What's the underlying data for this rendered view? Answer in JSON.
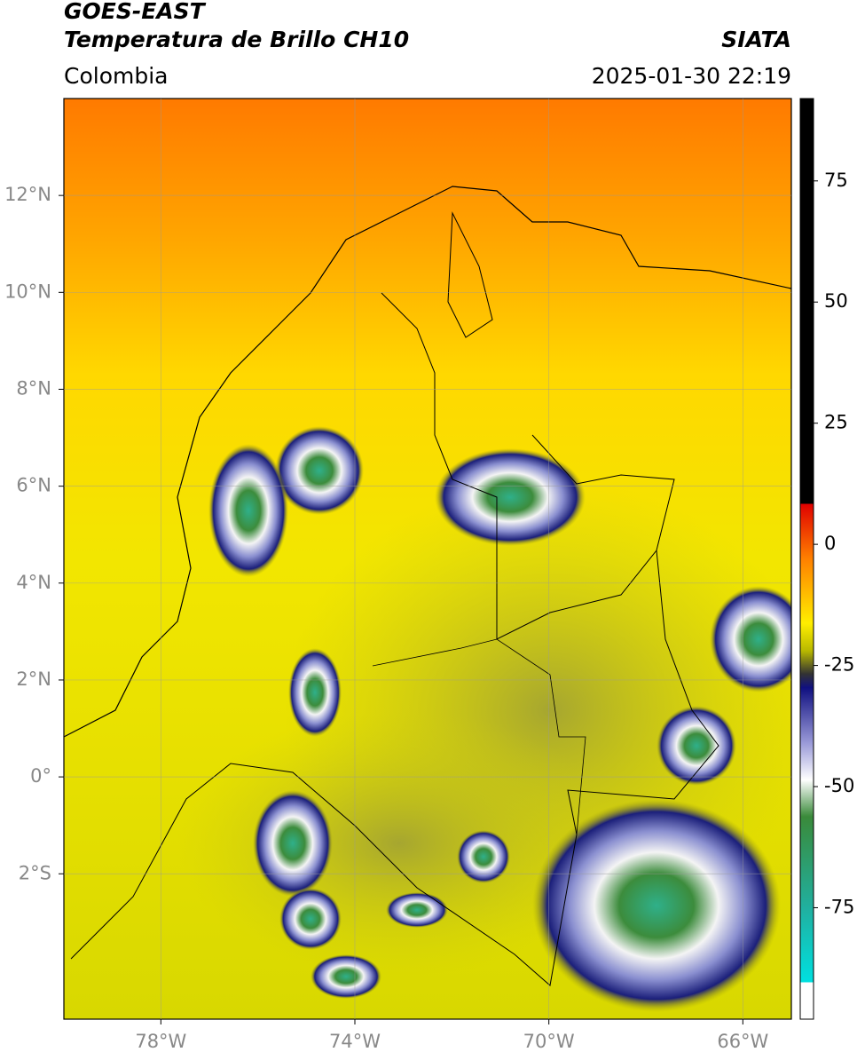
{
  "header": {
    "title": "GOES-EAST",
    "subtitle": "Temperatura de Brillo CH10",
    "source": "SIATA",
    "region": "Colombia",
    "datetime": "2025-01-30 22:19"
  },
  "map": {
    "xlim": [
      -80,
      -65
    ],
    "ylim": [
      -5,
      14
    ],
    "xticks": [
      {
        "value": -78,
        "label": "78°W"
      },
      {
        "value": -74,
        "label": "74°W"
      },
      {
        "value": -70,
        "label": "70°W"
      },
      {
        "value": -66,
        "label": "66°W"
      }
    ],
    "yticks": [
      {
        "value": 12,
        "label": "12°N"
      },
      {
        "value": 10,
        "label": "10°N"
      },
      {
        "value": 8,
        "label": "8°N"
      },
      {
        "value": 6,
        "label": "6°N"
      },
      {
        "value": 4,
        "label": "4°N"
      },
      {
        "value": 2,
        "label": "2°N"
      },
      {
        "value": 0,
        "label": "0°"
      },
      {
        "value": -2,
        "label": "2°S"
      }
    ],
    "grid": true
  },
  "colorbar": {
    "lim": [
      -98,
      92
    ],
    "ticks": [
      75,
      50,
      25,
      0,
      -25,
      -50,
      -75
    ]
  }
}
